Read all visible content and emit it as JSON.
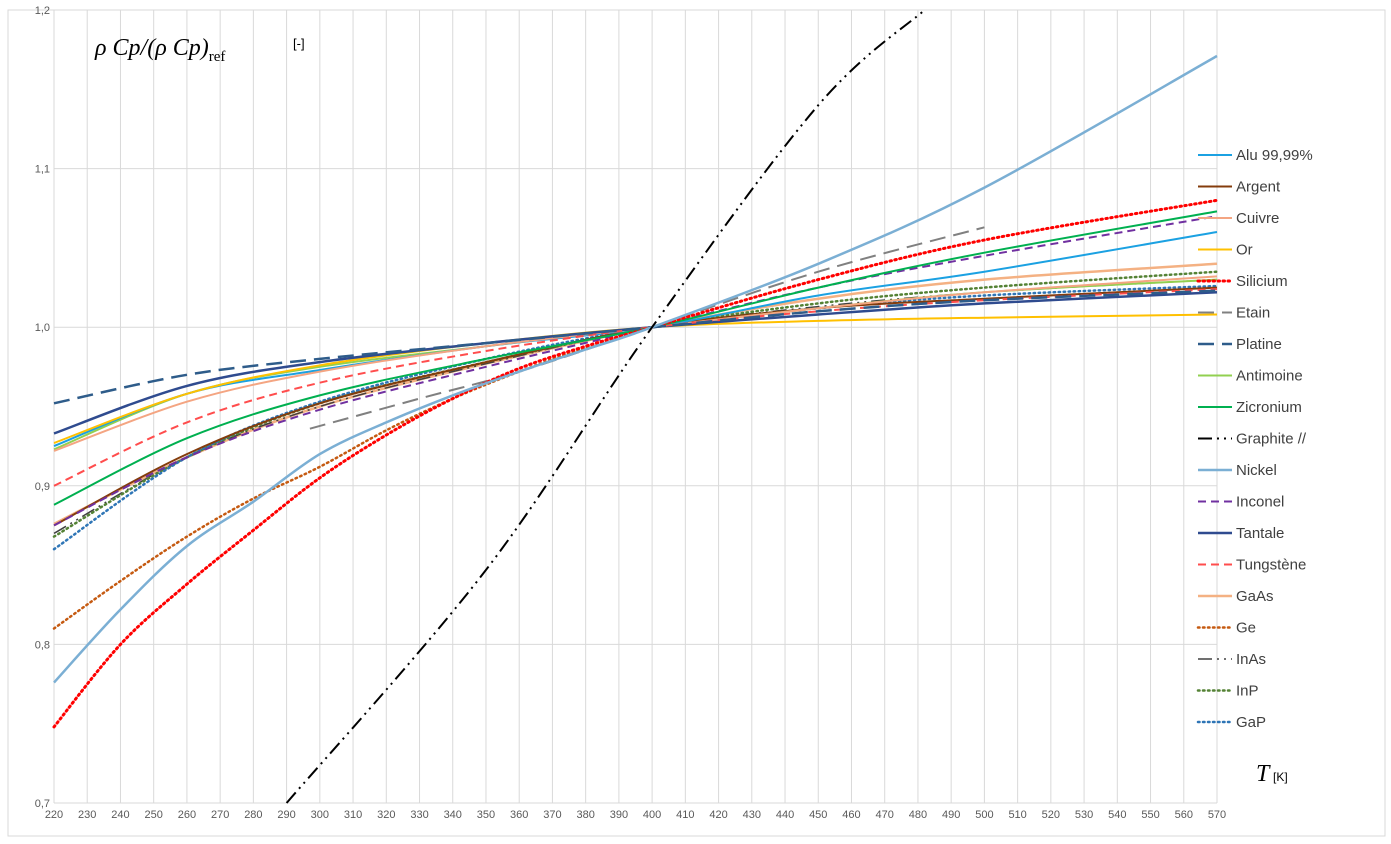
{
  "chart_data": {
    "type": "line",
    "ylabel_main": "ρ Cp/(ρ Cp)",
    "ylabel_sub": "ref",
    "ylabel_unit": "[-]",
    "xlabel_main": "T",
    "xlabel_unit": "[K]",
    "xlim": [
      220,
      570
    ],
    "ylim": [
      0.7,
      1.2
    ],
    "xticks": [
      220,
      230,
      240,
      250,
      260,
      270,
      280,
      290,
      300,
      310,
      320,
      330,
      340,
      350,
      360,
      370,
      380,
      390,
      400,
      410,
      420,
      430,
      440,
      450,
      460,
      470,
      480,
      490,
      500,
      510,
      520,
      530,
      540,
      550,
      560,
      570
    ],
    "yticks": [
      {
        "v": 0.7,
        "label": "0,7"
      },
      {
        "v": 0.8,
        "label": "0,8"
      },
      {
        "v": 0.9,
        "label": "0,9"
      },
      {
        "v": 1.0,
        "label": "1,0"
      },
      {
        "v": 1.1,
        "label": "1,1"
      },
      {
        "v": 1.2,
        "label": "1,2"
      }
    ],
    "grid": true,
    "legend_position": "right",
    "series": [
      {
        "name": "Alu 99,99%",
        "color": "#1ba1e2",
        "dash": "solid",
        "width": 2,
        "x": [
          220,
          260,
          300,
          350,
          400,
          450,
          500,
          570
        ],
        "y": [
          0.925,
          0.958,
          0.973,
          0.988,
          1.0,
          1.02,
          1.035,
          1.06
        ]
      },
      {
        "name": "Argent",
        "color": "#843c0c",
        "dash": "solid",
        "width": 2,
        "x": [
          220,
          260,
          300,
          350,
          400,
          450,
          500,
          570
        ],
        "y": [
          0.875,
          0.92,
          0.952,
          0.978,
          1.0,
          1.012,
          1.018,
          1.025
        ]
      },
      {
        "name": "Cuivre",
        "color": "#f4a582",
        "dash": "solid",
        "width": 2,
        "x": [
          220,
          260,
          300,
          350,
          400,
          450,
          500,
          570
        ],
        "y": [
          0.922,
          0.953,
          0.972,
          0.988,
          1.0,
          1.012,
          1.022,
          1.032
        ]
      },
      {
        "name": "Or",
        "color": "#ffc000",
        "dash": "solid",
        "width": 2,
        "x": [
          220,
          260,
          300,
          350,
          400,
          450,
          500,
          570
        ],
        "y": [
          0.927,
          0.958,
          0.976,
          0.99,
          1.0,
          1.004,
          1.006,
          1.008
        ]
      },
      {
        "name": "Silicium",
        "color": "#ff0000",
        "dash": "dot",
        "width": 3,
        "x": [
          220,
          240,
          260,
          280,
          300,
          320,
          340,
          360,
          380,
          400,
          450,
          500,
          570
        ],
        "y": [
          0.748,
          0.8,
          0.838,
          0.872,
          0.905,
          0.932,
          0.955,
          0.974,
          0.988,
          1.0,
          1.03,
          1.055,
          1.08
        ]
      },
      {
        "name": "Etain",
        "color": "#808080",
        "dash": "longdash",
        "width": 2,
        "x": [
          297,
          330,
          360,
          400,
          450,
          500
        ],
        "y": [
          0.936,
          0.955,
          0.972,
          1.0,
          1.035,
          1.063
        ]
      },
      {
        "name": "Platine",
        "color": "#2e5c8a",
        "dash": "longdash",
        "width": 2.5,
        "x": [
          220,
          260,
          300,
          350,
          400,
          450,
          500,
          570
        ],
        "y": [
          0.952,
          0.97,
          0.98,
          0.99,
          1.0,
          1.01,
          1.017,
          1.023
        ]
      },
      {
        "name": "Antimoine",
        "color": "#92d050",
        "dash": "solid",
        "width": 2,
        "x": [
          220,
          260,
          300,
          350,
          400,
          450,
          500,
          570
        ],
        "y": [
          0.923,
          0.958,
          0.975,
          0.988,
          1.0,
          1.012,
          1.022,
          1.03
        ]
      },
      {
        "name": "Zicronium",
        "color": "#00b050",
        "dash": "solid",
        "width": 2,
        "x": [
          220,
          260,
          300,
          350,
          400,
          450,
          500,
          570
        ],
        "y": [
          0.888,
          0.93,
          0.957,
          0.98,
          1.0,
          1.025,
          1.047,
          1.073
        ]
      },
      {
        "name": "Graphite //",
        "color": "#000000",
        "dash": "dashdotdot",
        "width": 2,
        "x": [
          290,
          350,
          400,
          450,
          482
        ],
        "y": [
          0.7,
          0.847,
          1.0,
          1.14,
          1.2
        ]
      },
      {
        "name": "Nickel",
        "color": "#7bafd4",
        "dash": "solid",
        "width": 2.5,
        "x": [
          220,
          240,
          260,
          280,
          300,
          320,
          340,
          360,
          380,
          400,
          450,
          500,
          570
        ],
        "y": [
          0.776,
          0.822,
          0.862,
          0.89,
          0.92,
          0.94,
          0.957,
          0.972,
          0.986,
          1.0,
          1.04,
          1.088,
          1.171
        ]
      },
      {
        "name": "Inconel",
        "color": "#7030a0",
        "dash": "dash",
        "width": 2,
        "x": [
          220,
          260,
          300,
          350,
          400,
          450,
          500,
          570
        ],
        "y": [
          0.875,
          0.918,
          0.948,
          0.975,
          1.0,
          1.025,
          1.045,
          1.07
        ]
      },
      {
        "name": "Tantale",
        "color": "#2f4b8f",
        "dash": "solid",
        "width": 2.5,
        "x": [
          220,
          260,
          300,
          350,
          400,
          450,
          500,
          570
        ],
        "y": [
          0.933,
          0.963,
          0.978,
          0.99,
          1.0,
          1.008,
          1.015,
          1.022
        ]
      },
      {
        "name": "Tungstène",
        "color": "#ff4d4d",
        "dash": "dash",
        "width": 2,
        "x": [
          220,
          260,
          300,
          350,
          400,
          450,
          500,
          570
        ],
        "y": [
          0.9,
          0.94,
          0.965,
          0.985,
          1.0,
          1.01,
          1.017,
          1.024
        ]
      },
      {
        "name": "GaAs",
        "color": "#f4b183",
        "dash": "solid",
        "width": 2.5,
        "x": [
          220,
          260,
          300,
          350,
          400,
          450,
          500,
          570
        ],
        "y": [
          0.876,
          0.918,
          0.95,
          0.977,
          1.0,
          1.018,
          1.03,
          1.04
        ]
      },
      {
        "name": "Ge",
        "color": "#c55a11",
        "dash": "dot",
        "width": 2.5,
        "x": [
          220,
          240,
          260,
          280,
          300,
          320,
          340,
          360,
          380,
          400,
          450,
          500,
          570
        ],
        "y": [
          0.81,
          0.84,
          0.868,
          0.892,
          0.912,
          0.935,
          0.955,
          0.972,
          0.987,
          1.0,
          1.03,
          1.055,
          1.08
        ]
      },
      {
        "name": "InAs",
        "color": "#404040",
        "dash": "dashdotdot",
        "width": 1.5,
        "x": [
          220,
          260,
          300,
          350,
          400,
          450,
          500,
          570
        ],
        "y": [
          0.87,
          0.918,
          0.95,
          0.977,
          1.0,
          1.013,
          1.022,
          1.03
        ]
      },
      {
        "name": "InP",
        "color": "#548235",
        "dash": "dot",
        "width": 2.5,
        "x": [
          220,
          260,
          300,
          350,
          400,
          450,
          500,
          570
        ],
        "y": [
          0.868,
          0.918,
          0.952,
          0.978,
          1.0,
          1.015,
          1.025,
          1.035
        ]
      },
      {
        "name": "GaP",
        "color": "#2e75b6",
        "dash": "dot",
        "width": 2.5,
        "x": [
          220,
          260,
          300,
          350,
          400,
          450,
          500,
          570
        ],
        "y": [
          0.86,
          0.918,
          0.953,
          0.98,
          1.0,
          1.012,
          1.02,
          1.026
        ]
      }
    ]
  }
}
